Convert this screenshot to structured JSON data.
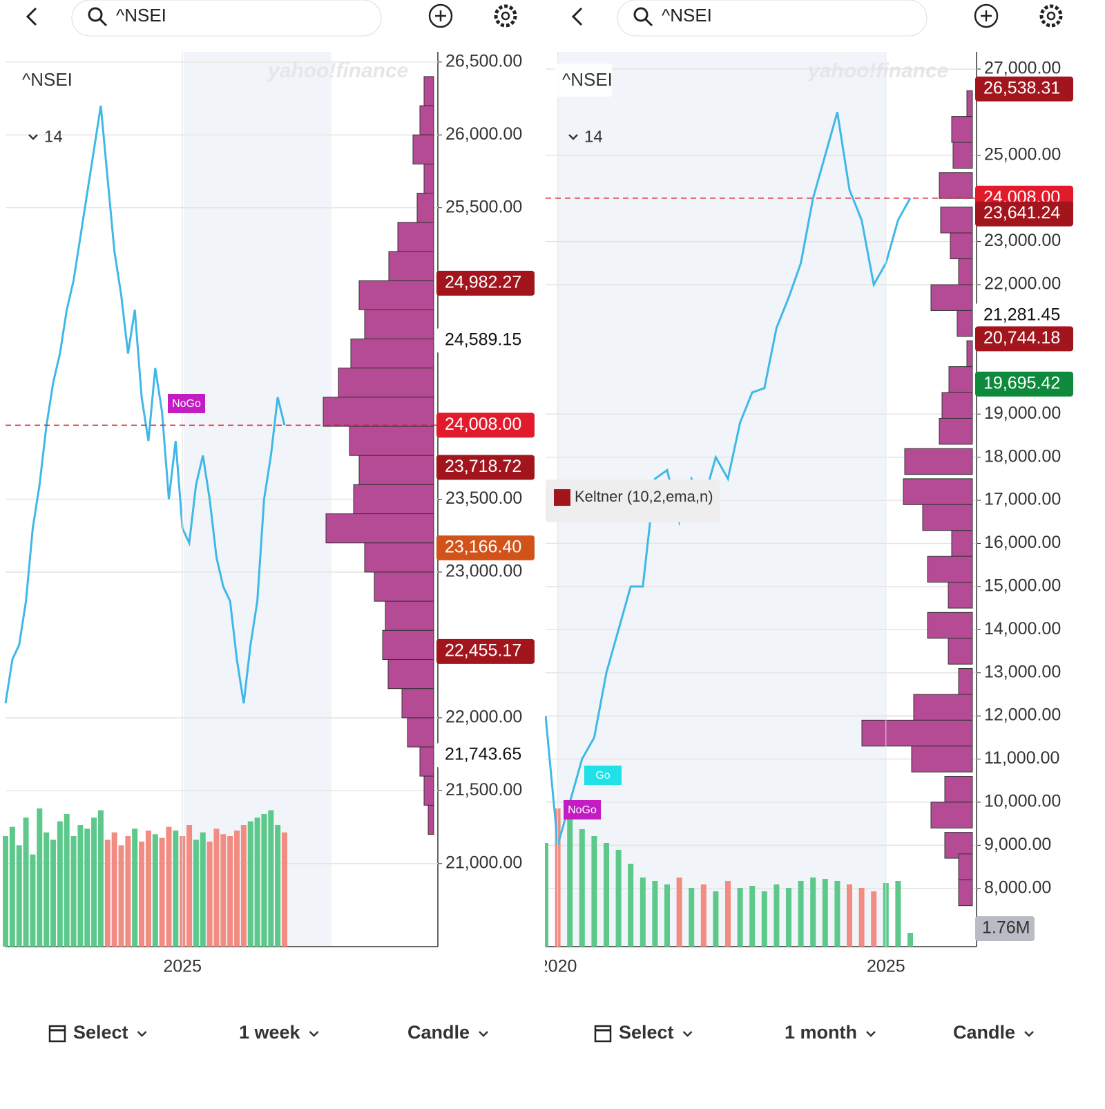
{
  "panels": [
    {
      "search": "^NSEI",
      "symbol": "^NSEI",
      "period": "14",
      "watermark": "yahoo!finance",
      "markers": [
        "NoGo"
      ],
      "controls": {
        "range": "Select",
        "interval": "1 week",
        "style": "Candle"
      },
      "chart_data": {
        "type": "line",
        "categories": [
          null,
          null,
          null,
          null,
          null,
          null,
          null,
          null,
          null,
          null,
          null,
          null,
          null,
          null,
          null,
          null,
          null,
          null,
          null,
          null,
          null,
          null,
          null,
          null,
          null,
          null,
          "2025",
          null,
          null,
          null,
          null,
          null,
          null,
          null,
          null,
          null,
          null,
          null,
          null,
          null,
          null,
          null
        ],
        "series": [
          {
            "name": "^NSEI",
            "color": "#3fb8e8",
            "values": [
              22100,
              22400,
              22500,
              22800,
              23300,
              23600,
              24000,
              24300,
              24500,
              24800,
              25000,
              25300,
              25600,
              25900,
              26200,
              25700,
              25200,
              24900,
              24500,
              24800,
              24200,
              23900,
              24400,
              24100,
              23500,
              23900,
              23300,
              23200,
              23600,
              23800,
              23500,
              23100,
              22900,
              22800,
              22400,
              22100,
              22500,
              22800,
              23500,
              23800,
              24200,
              24008
            ]
          }
        ],
        "volume": [
          60,
          65,
          55,
          70,
          50,
          75,
          62,
          58,
          68,
          72,
          60,
          66,
          64,
          70,
          74,
          58,
          62,
          55,
          60,
          64,
          57,
          63,
          61,
          59,
          65,
          63,
          60,
          66,
          58,
          62,
          57,
          64,
          61,
          60,
          63,
          66,
          68,
          70,
          72,
          74,
          66,
          62
        ],
        "volume_colors": {
          "up": "#5cc98a",
          "down": "#f28b82"
        },
        "profile": {
          "color": "#b44b94",
          "levels": [
            26300,
            26100,
            25900,
            25700,
            25500,
            25300,
            25100,
            24900,
            24700,
            24500,
            24300,
            24100,
            23900,
            23700,
            23500,
            23300,
            23100,
            22900,
            22700,
            22500,
            22300,
            22100,
            21900,
            21700,
            21500,
            21300
          ],
          "sizes": [
            14,
            20,
            30,
            14,
            24,
            52,
            65,
            108,
            100,
            120,
            138,
            160,
            122,
            108,
            116,
            156,
            100,
            86,
            70,
            74,
            66,
            46,
            38,
            20,
            14,
            8
          ]
        },
        "ylim": [
          20430,
          26570
        ],
        "yticks": [
          {
            "value": 26500,
            "label": "26,500.00"
          },
          {
            "value": 26000,
            "label": "26,000.00"
          },
          {
            "value": 25500,
            "label": "25,500.00"
          },
          {
            "value": 23500,
            "label": "23,500.00"
          },
          {
            "value": 23000,
            "label": "23,000.00"
          },
          {
            "value": 22000,
            "label": "22,000.00"
          },
          {
            "value": 21500,
            "label": "21,500.00"
          },
          {
            "value": 21000,
            "label": "21,000.00"
          }
        ],
        "price_tags": [
          {
            "value": 24982.27,
            "label": "24,982.27",
            "color": "#a3151d"
          },
          {
            "value": 24589.15,
            "label": "24,589.15",
            "color": "#ffffff"
          },
          {
            "value": 24008,
            "label": "24,008.00",
            "color": "#e21b2c",
            "dashed": true
          },
          {
            "value": 23718.72,
            "label": "23,718.72",
            "color": "#a3151d"
          },
          {
            "value": 23166.4,
            "label": "23,166.40",
            "color": "#d2531a"
          },
          {
            "value": 22455.17,
            "label": "22,455.17",
            "color": "#a3151d"
          },
          {
            "value": 21743.65,
            "label": "21,743.65",
            "color": "#ffffff"
          }
        ]
      }
    },
    {
      "search": "^NSEI",
      "symbol": "^NSEI",
      "period": "14",
      "watermark": "yahoo!finance",
      "markers": [
        "NoGo",
        "Go"
      ],
      "legend": "Keltner (10,2,ema,n)",
      "volume_tag": "1.76M",
      "controls": {
        "range": "Select",
        "interval": "1 month",
        "style": "Candle"
      },
      "chart_data": {
        "type": "line",
        "categories": [
          null,
          "2020",
          null,
          null,
          null,
          null,
          null,
          null,
          null,
          null,
          null,
          null,
          null,
          null,
          null,
          null,
          null,
          null,
          null,
          null,
          null,
          null,
          null,
          null,
          null,
          null,
          null,
          null,
          "2025",
          null,
          null
        ],
        "series": [
          {
            "name": "^NSEI",
            "color": "#3fb8e8",
            "values": [
              12000,
              9000,
              10000,
              11000,
              11500,
              13000,
              14000,
              15000,
              15000,
              17500,
              17700,
              16500,
              17500,
              17000,
              18000,
              17500,
              18800,
              19500,
              19600,
              21000,
              21700,
              22500,
              24000,
              25000,
              26000,
              24200,
              23500,
              22000,
              22500,
              23500,
              24008
            ]
          }
        ],
        "volume": [
          150,
          200,
          190,
          170,
          160,
          150,
          140,
          120,
          100,
          95,
          90,
          100,
          85,
          90,
          80,
          95,
          85,
          88,
          80,
          90,
          85,
          95,
          100,
          98,
          95,
          90,
          85,
          80,
          92,
          95,
          20
        ],
        "volume_colors": {
          "up": "#5cc98a",
          "down": "#f28b82"
        },
        "profile": {
          "color": "#b44b94",
          "levels": [
            26200,
            25600,
            25000,
            24300,
            23500,
            22900,
            22300,
            21700,
            21100,
            20400,
            19800,
            19200,
            18600,
            17900,
            17200,
            16600,
            16000,
            15400,
            14800,
            14100,
            13500,
            12800,
            12200,
            11600,
            11000,
            10300,
            9700,
            9000,
            8500,
            7900
          ],
          "sizes": [
            8,
            30,
            28,
            48,
            46,
            32,
            20,
            60,
            22,
            8,
            34,
            44,
            48,
            98,
            100,
            72,
            30,
            65,
            35,
            65,
            35,
            20,
            85,
            160,
            88,
            40,
            60,
            40,
            20,
            20
          ]
        },
        "ylim": [
          6650,
          27400
        ],
        "yticks": [
          {
            "value": 27000,
            "label": "27,000.00"
          },
          {
            "value": 25000,
            "label": "25,000.00"
          },
          {
            "value": 23000,
            "label": "23,000.00"
          },
          {
            "value": 22000,
            "label": "22,000.00"
          },
          {
            "value": 19000,
            "label": "19,000.00"
          },
          {
            "value": 18000,
            "label": "18,000.00"
          },
          {
            "value": 17000,
            "label": "17,000.00"
          },
          {
            "value": 16000,
            "label": "16,000.00"
          },
          {
            "value": 15000,
            "label": "15,000.00"
          },
          {
            "value": 14000,
            "label": "14,000.00"
          },
          {
            "value": 13000,
            "label": "13,000.00"
          },
          {
            "value": 12000,
            "label": "12,000.00"
          },
          {
            "value": 11000,
            "label": "11,000.00"
          },
          {
            "value": 10000,
            "label": "10,000.00"
          },
          {
            "value": 9000,
            "label": "9,000.00"
          },
          {
            "value": 8000,
            "label": "8,000.00"
          }
        ],
        "price_tags": [
          {
            "value": 26538.31,
            "label": "26,538.31",
            "color": "#a3151d"
          },
          {
            "value": 24008,
            "label": "24,008.00",
            "color": "#e21b2c",
            "dashed": true
          },
          {
            "value": 23641.24,
            "label": "23,641.24",
            "color": "#a3151d"
          },
          {
            "value": 21281.45,
            "label": "21,281.45",
            "color": "#ffffff"
          },
          {
            "value": 20744.18,
            "label": "20,744.18",
            "color": "#a3151d"
          },
          {
            "value": 19695.42,
            "label": "19,695.42",
            "color": "#0f8a3c"
          }
        ]
      }
    }
  ]
}
